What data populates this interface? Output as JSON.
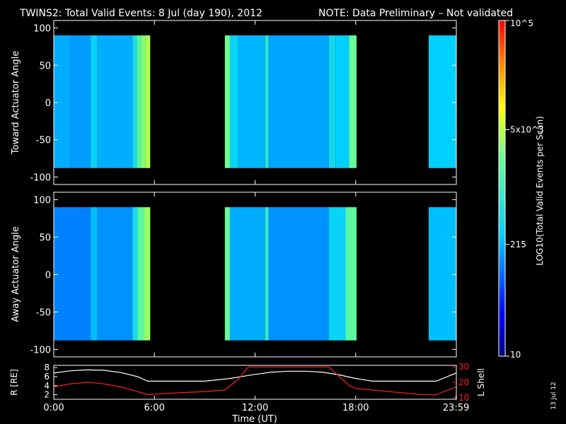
{
  "header": {
    "title": "TWINS2: Total Valid Events:  8 Jul (day 190), 2012",
    "note": "NOTE: Data Preliminary – Not validated",
    "note_color": "#ff2020"
  },
  "colorbar": {
    "label": "LOG10(Total Valid Events per Scan)",
    "ticks": [
      {
        "label": "10",
        "value": 10
      },
      {
        "label": "215",
        "value": 215
      },
      {
        "label": "5x10^3",
        "value": 5000
      },
      {
        "label": "10^5",
        "value": 100000
      }
    ],
    "scale": "log",
    "range": [
      10,
      100000
    ]
  },
  "footer": {
    "date_stamp": "13 Jul 12"
  },
  "chart_data": [
    {
      "type": "heatmap",
      "name": "toward",
      "ylabel": "Toward Actuator Angle",
      "ylim": [
        -110,
        110
      ],
      "yticks": [
        100,
        50,
        0,
        -50,
        -100
      ],
      "xlim": [
        0,
        24
      ],
      "data_y_range": [
        -88,
        90
      ],
      "segments": [
        {
          "start": 0.0,
          "end": 5.75
        },
        {
          "start": 10.2,
          "end": 18.05
        },
        {
          "start": 22.35,
          "end": 24.0
        }
      ],
      "stripes": [
        {
          "start": 0.0,
          "end": 1.0,
          "level": 0.32
        },
        {
          "start": 1.0,
          "end": 2.2,
          "level": 0.3
        },
        {
          "start": 2.2,
          "end": 2.6,
          "level": 0.38
        },
        {
          "start": 2.6,
          "end": 4.7,
          "level": 0.32
        },
        {
          "start": 4.7,
          "end": 4.95,
          "level": 0.42
        },
        {
          "start": 4.95,
          "end": 5.2,
          "level": 0.55
        },
        {
          "start": 5.2,
          "end": 5.45,
          "level": 0.62
        },
        {
          "start": 5.45,
          "end": 5.75,
          "level": 0.66
        },
        {
          "start": 10.2,
          "end": 10.5,
          "level": 0.6
        },
        {
          "start": 10.5,
          "end": 11.0,
          "level": 0.38
        },
        {
          "start": 11.0,
          "end": 12.6,
          "level": 0.33
        },
        {
          "start": 12.6,
          "end": 12.8,
          "level": 0.46
        },
        {
          "start": 12.8,
          "end": 16.4,
          "level": 0.31
        },
        {
          "start": 16.4,
          "end": 16.8,
          "level": 0.4
        },
        {
          "start": 16.8,
          "end": 17.6,
          "level": 0.36
        },
        {
          "start": 17.6,
          "end": 18.05,
          "level": 0.58
        },
        {
          "start": 22.35,
          "end": 24.0,
          "level": 0.36
        }
      ]
    },
    {
      "type": "heatmap",
      "name": "away",
      "ylabel": "Away Actuator Angle",
      "ylim": [
        -110,
        110
      ],
      "yticks": [
        100,
        50,
        0,
        -50,
        -100
      ],
      "xlim": [
        0,
        24
      ],
      "data_y_range": [
        -88,
        90
      ],
      "segments": [
        {
          "start": 0.0,
          "end": 5.75
        },
        {
          "start": 10.2,
          "end": 18.05
        },
        {
          "start": 22.35,
          "end": 24.0
        }
      ],
      "stripes": [
        {
          "start": 0.0,
          "end": 2.2,
          "level": 0.27
        },
        {
          "start": 2.2,
          "end": 2.6,
          "level": 0.34
        },
        {
          "start": 2.6,
          "end": 4.7,
          "level": 0.29
        },
        {
          "start": 4.7,
          "end": 5.0,
          "level": 0.42
        },
        {
          "start": 5.0,
          "end": 5.4,
          "level": 0.56
        },
        {
          "start": 5.4,
          "end": 5.75,
          "level": 0.64
        },
        {
          "start": 10.2,
          "end": 10.5,
          "level": 0.58
        },
        {
          "start": 10.5,
          "end": 12.6,
          "level": 0.32
        },
        {
          "start": 12.6,
          "end": 12.8,
          "level": 0.48
        },
        {
          "start": 12.8,
          "end": 16.4,
          "level": 0.29
        },
        {
          "start": 16.4,
          "end": 17.4,
          "level": 0.38
        },
        {
          "start": 17.4,
          "end": 18.05,
          "level": 0.56
        },
        {
          "start": 22.35,
          "end": 24.0,
          "level": 0.34
        }
      ]
    },
    {
      "type": "line",
      "name": "orbit",
      "xlabel": "Time (UT)",
      "ylabel": "R [RE]",
      "ylabel_right": "L Shell",
      "ylim": [
        1,
        8.5
      ],
      "yticks": [
        8,
        6,
        4,
        2
      ],
      "ylim_right": [
        9,
        31
      ],
      "yticks_right": [
        30,
        20,
        10
      ],
      "xticks": [
        {
          "value": 0,
          "label": "0:00"
        },
        {
          "value": 6,
          "label": "6:00"
        },
        {
          "value": 12,
          "label": "12:00"
        },
        {
          "value": 18,
          "label": "18:00"
        },
        {
          "value": 23.98,
          "label": "23:59"
        }
      ],
      "xlim": [
        0,
        24
      ],
      "series": [
        {
          "name": "R",
          "axis": "left",
          "color": "#ffffff",
          "x": [
            0,
            1,
            2,
            3,
            4,
            5,
            5.6,
            7,
            9,
            10.5,
            12,
            13,
            14,
            15,
            16,
            17,
            18,
            19,
            20,
            21,
            22,
            22.8,
            23.98
          ],
          "y": [
            6.8,
            7.3,
            7.5,
            7.4,
            6.9,
            6.0,
            5.0,
            5.0,
            5.0,
            5.6,
            6.5,
            7.0,
            7.2,
            7.2,
            7.0,
            6.4,
            5.6,
            5.0,
            5.0,
            5.0,
            5.0,
            5.0,
            6.8
          ]
        },
        {
          "name": "L",
          "axis": "right",
          "color": "#ff2020",
          "x": [
            0,
            1,
            2,
            3,
            4,
            5,
            5.6,
            7,
            9,
            10.2,
            11,
            11.6,
            16.4,
            17,
            17.6,
            18,
            19,
            20,
            21,
            22,
            22.8,
            23.98
          ],
          "y": [
            17,
            19,
            20,
            19,
            17,
            14,
            12,
            13,
            14,
            15,
            22,
            30,
            30,
            24,
            18,
            16,
            15,
            14,
            13,
            12,
            12,
            17
          ]
        }
      ]
    }
  ]
}
